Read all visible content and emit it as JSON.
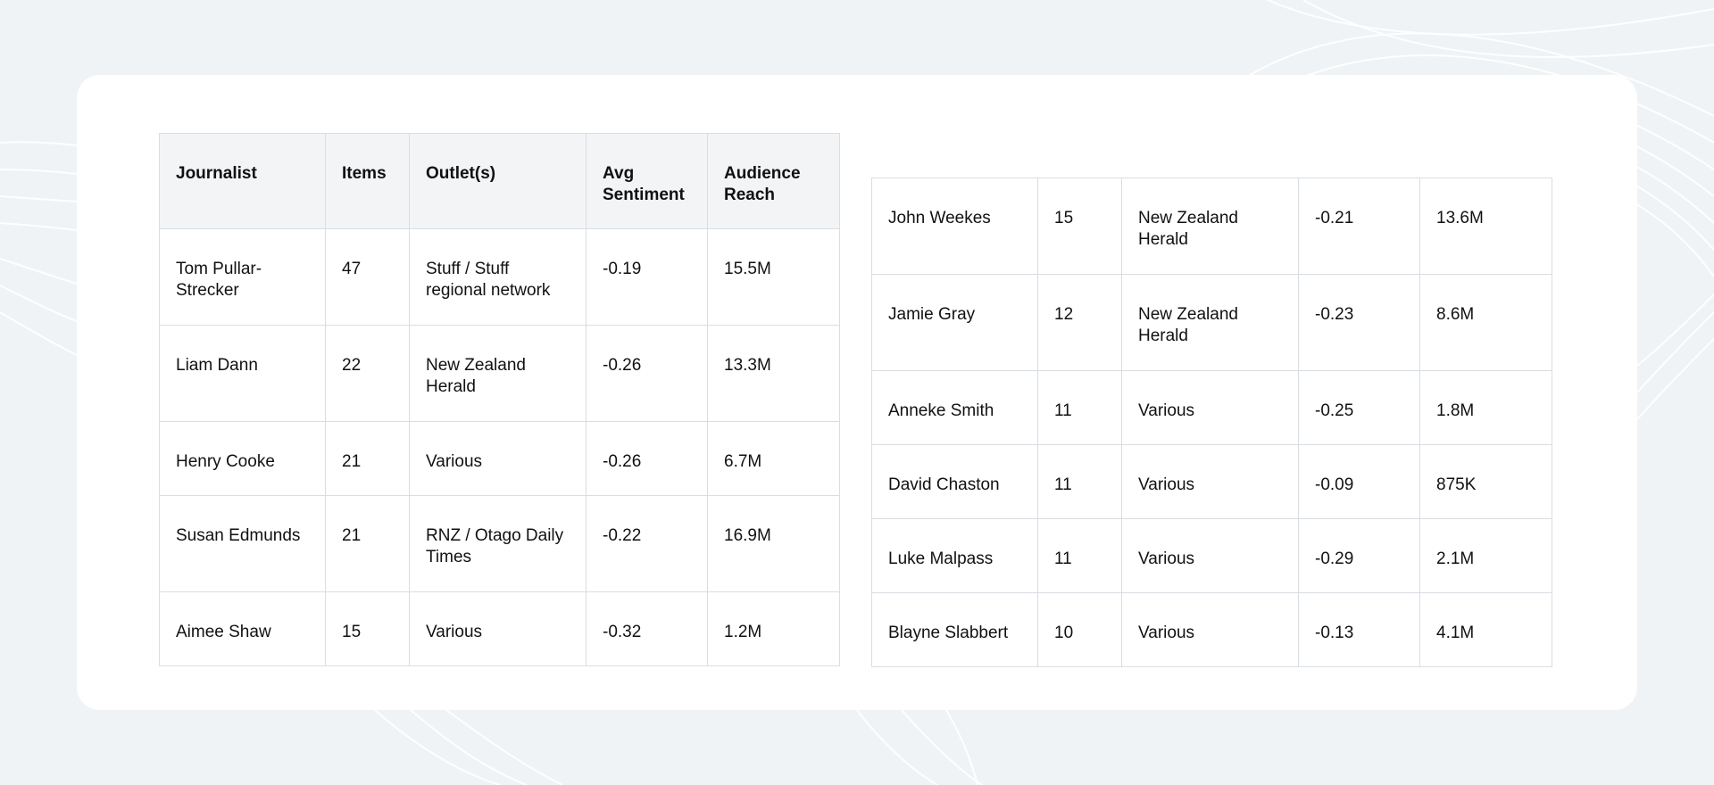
{
  "left_table": {
    "headers": [
      "Journalist",
      "Items",
      "Outlet(s)",
      "Avg Sentiment",
      "Audience Reach"
    ],
    "rows": [
      [
        "Tom Pullar-Strecker",
        "47",
        "Stuff / Stuff regional network",
        "-0.19",
        "15.5M"
      ],
      [
        "Liam Dann",
        "22",
        "New Zealand Herald",
        "-0.26",
        "13.3M"
      ],
      [
        "Henry Cooke",
        "21",
        "Various",
        "-0.26",
        "6.7M"
      ],
      [
        "Susan Edmunds",
        "21",
        "RNZ / Otago Daily Times",
        "-0.22",
        "16.9M"
      ],
      [
        "Aimee Shaw",
        "15",
        "Various",
        "-0.32",
        "1.2M"
      ]
    ]
  },
  "right_table": {
    "rows": [
      [
        "John Weekes",
        "15",
        "New Zealand Herald",
        "-0.21",
        "13.6M"
      ],
      [
        "Jamie Gray",
        "12",
        "New Zealand Herald",
        "-0.23",
        "8.6M"
      ],
      [
        "Anneke Smith",
        "11",
        "Various",
        "-0.25",
        "1.8M"
      ],
      [
        "David Chaston",
        "11",
        "Various",
        "-0.09",
        "875K"
      ],
      [
        "Luke Malpass",
        "11",
        "Various",
        "-0.29",
        "2.1M"
      ],
      [
        "Blayne Slabbert",
        "10",
        "Various",
        "-0.13",
        "4.1M"
      ]
    ]
  }
}
